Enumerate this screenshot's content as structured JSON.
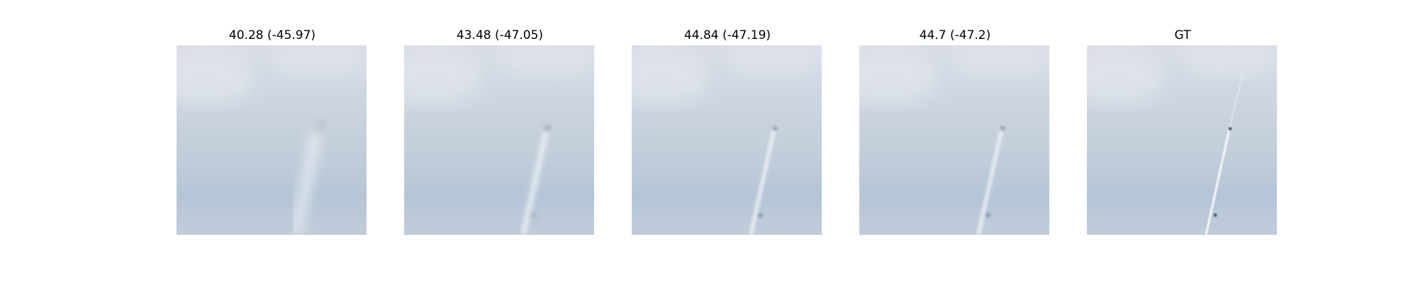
{
  "panels": [
    {
      "title": "40.28 (-45.97)",
      "sharpness": "very-blurry"
    },
    {
      "title": "43.48 (-47.05)",
      "sharpness": "blurry"
    },
    {
      "title": "44.84 (-47.19)",
      "sharpness": "slightly-blurry"
    },
    {
      "title": "44.7 (-47.2)",
      "sharpness": "slightly-blurry"
    },
    {
      "title": "GT",
      "sharpness": "sharp"
    }
  ],
  "colors": {
    "sky_top": "#d8dde6",
    "sky_mid": "#c3ceda",
    "sky_bottom": "#b5c5d6",
    "cloud": "#e3e7ee",
    "contrail": "#eef2f7",
    "object": "#4d6470"
  }
}
